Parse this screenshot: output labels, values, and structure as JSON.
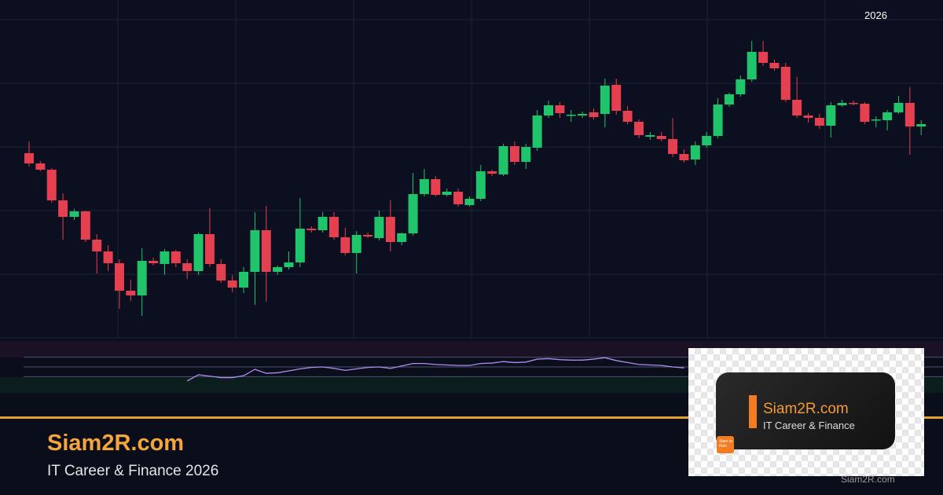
{
  "chart_data": {
    "type": "candlestick",
    "period_label": "2026",
    "ylim": [
      0,
      405
    ],
    "grid": true,
    "up_color": "#1fc46b",
    "down_color": "#e5404f",
    "ohlc": [
      [
        235,
        250,
        218,
        222
      ],
      [
        222,
        225,
        212,
        214
      ],
      [
        214,
        216,
        172,
        175
      ],
      [
        175,
        184,
        125,
        154
      ],
      [
        154,
        164,
        150,
        161
      ],
      [
        161,
        162,
        122,
        125
      ],
      [
        125,
        132,
        82,
        110
      ],
      [
        110,
        118,
        85,
        95
      ],
      [
        95,
        100,
        37,
        60
      ],
      [
        60,
        74,
        47,
        54
      ],
      [
        54,
        114,
        28,
        98
      ],
      [
        98,
        102,
        92,
        95
      ],
      [
        94,
        113,
        80,
        110
      ],
      [
        110,
        112,
        90,
        95
      ],
      [
        95,
        100,
        75,
        85
      ],
      [
        85,
        134,
        80,
        132
      ],
      [
        132,
        165,
        90,
        94
      ],
      [
        94,
        100,
        70,
        73
      ],
      [
        73,
        80,
        58,
        64
      ],
      [
        64,
        90,
        57,
        84
      ],
      [
        84,
        160,
        42,
        137
      ],
      [
        137,
        168,
        46,
        84
      ],
      [
        84,
        92,
        80,
        90
      ],
      [
        90,
        110,
        87,
        96
      ],
      [
        96,
        178,
        90,
        139
      ],
      [
        139,
        142,
        134,
        137
      ],
      [
        137,
        160,
        134,
        154
      ],
      [
        154,
        160,
        125,
        128
      ],
      [
        128,
        140,
        105,
        108
      ],
      [
        108,
        136,
        82,
        131
      ],
      [
        131,
        134,
        127,
        129
      ],
      [
        127,
        162,
        124,
        154
      ],
      [
        154,
        175,
        110,
        122
      ],
      [
        122,
        134,
        118,
        133
      ],
      [
        133,
        210,
        130,
        183
      ],
      [
        183,
        215,
        180,
        202
      ],
      [
        202,
        206,
        180,
        182
      ],
      [
        182,
        190,
        180,
        186
      ],
      [
        186,
        190,
        167,
        170
      ],
      [
        169,
        180,
        167,
        177
      ],
      [
        177,
        220,
        174,
        212
      ],
      [
        212,
        214,
        206,
        209
      ],
      [
        208,
        247,
        206,
        244
      ],
      [
        244,
        250,
        220,
        224
      ],
      [
        224,
        247,
        215,
        243
      ],
      [
        242,
        290,
        238,
        283
      ],
      [
        283,
        302,
        280,
        296
      ],
      [
        296,
        300,
        280,
        286
      ],
      [
        283,
        290,
        275,
        284
      ],
      [
        283,
        288,
        280,
        285
      ],
      [
        287,
        292,
        278,
        281
      ],
      [
        285,
        330,
        268,
        321
      ],
      [
        322,
        330,
        284,
        289
      ],
      [
        289,
        295,
        272,
        275
      ],
      [
        275,
        278,
        254,
        258
      ],
      [
        256,
        262,
        252,
        258
      ],
      [
        257,
        262,
        250,
        253
      ],
      [
        253,
        280,
        230,
        234
      ],
      [
        234,
        240,
        223,
        226
      ],
      [
        227,
        250,
        220,
        245
      ],
      [
        245,
        262,
        242,
        257
      ],
      [
        257,
        305,
        254,
        297
      ],
      [
        297,
        312,
        294,
        310
      ],
      [
        310,
        334,
        307,
        329
      ],
      [
        329,
        378,
        326,
        364
      ],
      [
        364,
        378,
        346,
        350
      ],
      [
        350,
        354,
        340,
        343
      ],
      [
        345,
        350,
        300,
        303
      ],
      [
        303,
        332,
        280,
        283
      ],
      [
        283,
        286,
        274,
        280
      ],
      [
        280,
        285,
        266,
        270
      ],
      [
        270,
        300,
        255,
        296
      ],
      [
        296,
        303,
        294,
        299
      ],
      [
        299,
        302,
        296,
        298
      ],
      [
        298,
        300,
        272,
        275
      ],
      [
        277,
        282,
        268,
        278
      ],
      [
        277,
        290,
        264,
        287
      ],
      [
        287,
        308,
        285,
        299
      ],
      [
        299,
        319,
        233,
        269
      ],
      [
        269,
        277,
        258,
        272
      ]
    ],
    "indicator": {
      "type": "line",
      "color": "#b38cf0",
      "ylim": [
        0,
        100
      ],
      "levels": [
        30,
        50,
        70
      ],
      "values": [
        null,
        null,
        null,
        null,
        null,
        null,
        null,
        null,
        null,
        null,
        null,
        null,
        null,
        null,
        21,
        34,
        31,
        28,
        28,
        32,
        45,
        37,
        38,
        42,
        46,
        49,
        50,
        47,
        43,
        46,
        49,
        50,
        47,
        52,
        57,
        57,
        55,
        54,
        53,
        53,
        57,
        58,
        61,
        59,
        60,
        66,
        67,
        65,
        64,
        64,
        66,
        69,
        63,
        59,
        55,
        54,
        53,
        50,
        48,
        null,
        null,
        null,
        null,
        null,
        null,
        null,
        null,
        null,
        null,
        null,
        null,
        null,
        null,
        null,
        null,
        null,
        null,
        null,
        null,
        null
      ]
    }
  },
  "branding": {
    "title": "Siam2R.com",
    "subtitle": "IT Career & Finance 2026",
    "card_title": "Siam2R.com",
    "card_subtitle": "IT Career & Finance",
    "logo_text": "Siam to Rich",
    "watermark": "Siam2R.com"
  }
}
